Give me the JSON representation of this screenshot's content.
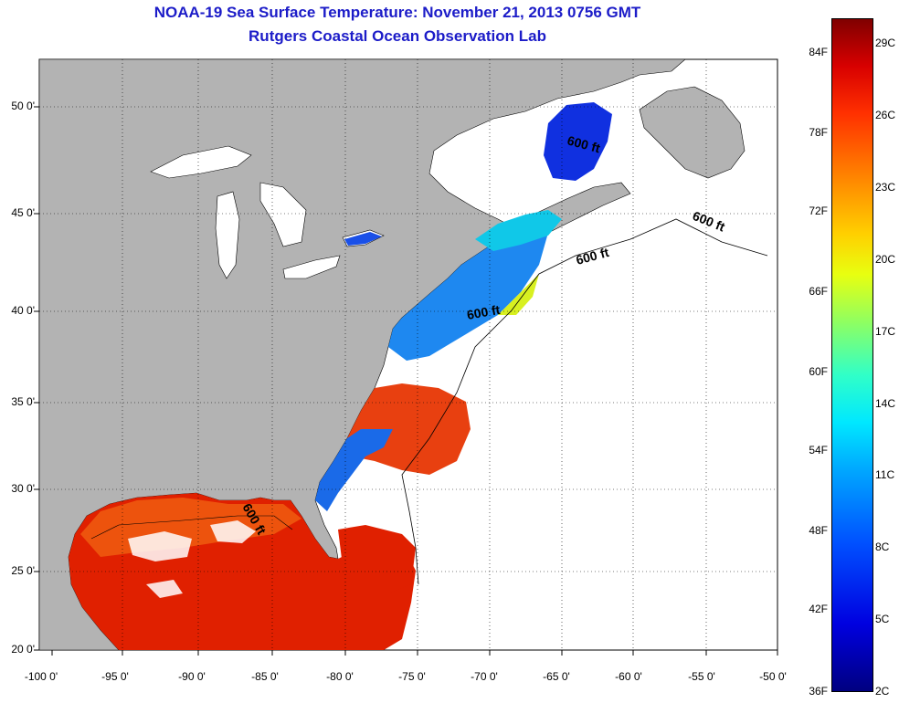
{
  "header": {
    "title": "NOAA-19 Sea Surface Temperature:  November 21, 2013 0756 GMT",
    "subtitle": "Rutgers Coastal Ocean Observation Lab"
  },
  "axes": {
    "x_ticks": [
      "-100 0'",
      "-95 0'",
      "-90 0'",
      "-85 0'",
      "-80 0'",
      "-75 0'",
      "-70 0'",
      "-65 0'",
      "-60 0'",
      "-55 0'",
      "-50 0'"
    ],
    "y_ticks": [
      "50 0'",
      "45 0'",
      "40 0'",
      "35 0'",
      "30 0'",
      "25 0'",
      "20 0'"
    ],
    "lon_range": [
      -100,
      -50
    ],
    "lat_range": [
      20,
      52
    ],
    "grid": "dotted"
  },
  "contour_labels": [
    "600 ft",
    "600 ft",
    "600 ft",
    "600 ft",
    "600 ft"
  ],
  "colorbar": {
    "fahrenheit_labels": [
      "84F",
      "78F",
      "72F",
      "66F",
      "60F",
      "54F",
      "48F",
      "42F",
      "36F"
    ],
    "celsius_labels": [
      "29C",
      "26C",
      "23C",
      "20C",
      "17C",
      "14C",
      "11C",
      "8C",
      "5C",
      "2C"
    ],
    "range_c": [
      2,
      30
    ]
  },
  "colors": {
    "land": "#b3b3b3",
    "title": "#1c1cc8",
    "cloud": "#ffffff",
    "warm": "#e02000",
    "cold": "#1030e0"
  }
}
